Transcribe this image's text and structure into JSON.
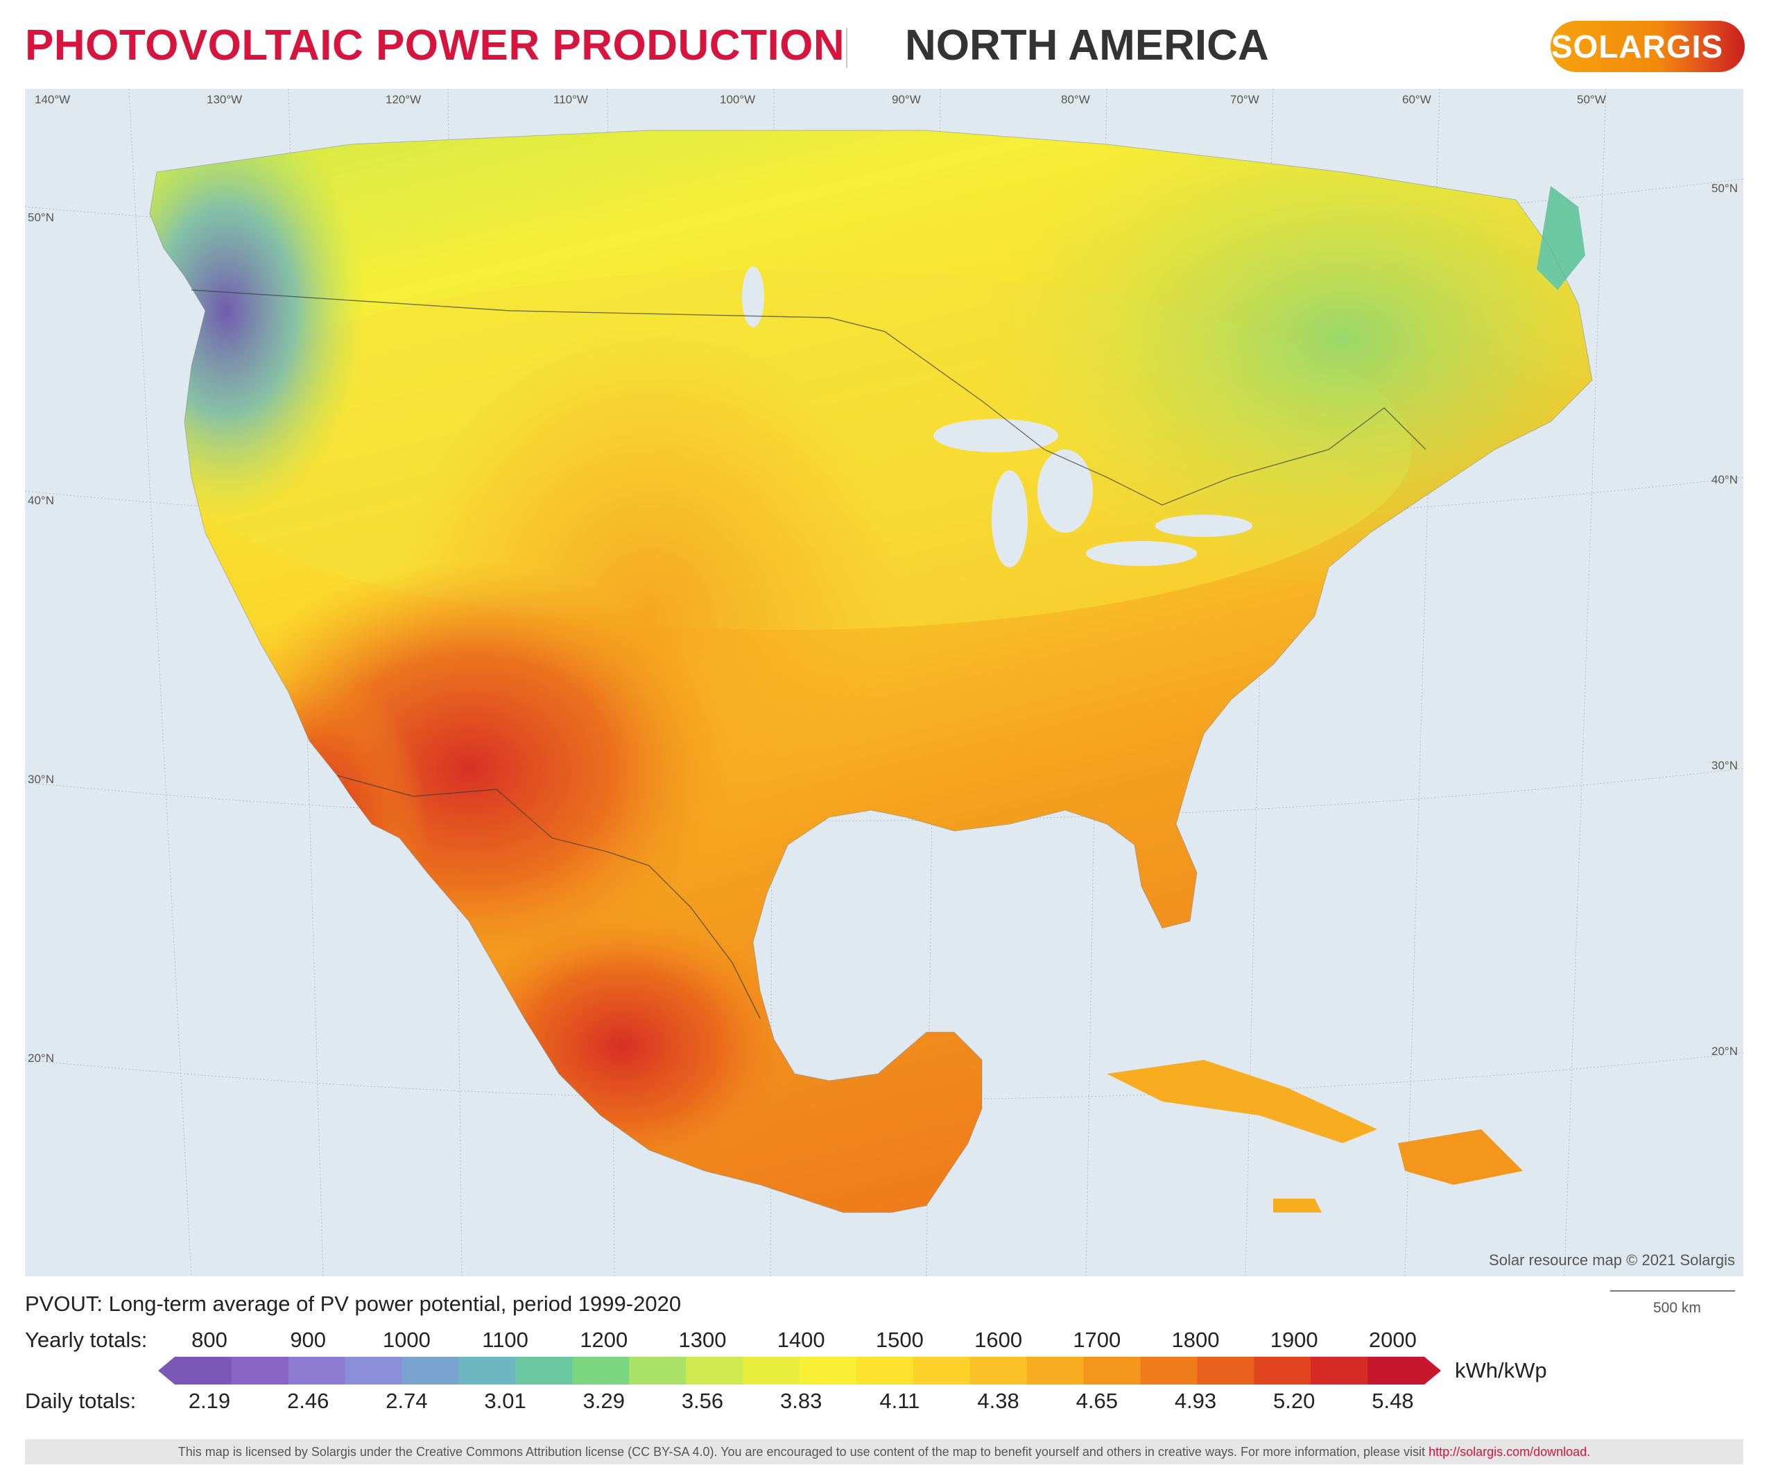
{
  "header": {
    "title": "PHOTOVOLTAIC POWER PRODUCTION",
    "region": "NORTH AMERICA",
    "logo_text": "SOLARGIS"
  },
  "map": {
    "longitude_labels": [
      "140°W",
      "130°W",
      "120°W",
      "110°W",
      "100°W",
      "90°W",
      "80°W",
      "70°W",
      "60°W",
      "50°W"
    ],
    "latitude_labels_left": [
      "50°N",
      "40°N",
      "30°N",
      "20°N"
    ],
    "latitude_labels_right": [
      "50°N",
      "40°N",
      "30°N",
      "20°N"
    ],
    "credit": "Solar resource map © 2021 Solargis",
    "scale_label": "500 km",
    "colors": {
      "water": "#dfe9ef",
      "land_low": "#7b57b8",
      "land_mid": "#f7e531",
      "land_high": "#c6172f"
    }
  },
  "legend": {
    "description": "PVOUT: Long-term average of PV power potential, period 1999-2020",
    "yearly_label": "Yearly totals:",
    "daily_label": "Daily totals:",
    "yearly_values": [
      "800",
      "900",
      "1000",
      "1100",
      "1200",
      "1300",
      "1400",
      "1500",
      "1600",
      "1700",
      "1800",
      "1900",
      "2000"
    ],
    "daily_values": [
      "2.19",
      "2.46",
      "2.74",
      "3.01",
      "3.29",
      "3.56",
      "3.83",
      "4.11",
      "4.38",
      "4.65",
      "4.93",
      "5.20",
      "5.48"
    ],
    "unit": "kWh/kWp",
    "colors": [
      "#7b57b8",
      "#8a64c4",
      "#8d7bd1",
      "#8b8fd8",
      "#7aa3d0",
      "#6db7c0",
      "#6cc8a3",
      "#7ad77f",
      "#a9e266",
      "#cfe94f",
      "#e9ee3c",
      "#f9ef36",
      "#fce22e",
      "#fdd22a",
      "#fbc126",
      "#f8ad20",
      "#f3961b",
      "#ee7c1a",
      "#e8601c",
      "#e1441f",
      "#d62a25",
      "#c6172f"
    ]
  },
  "footer": {
    "license_text": "This map is licensed by Solargis under the Creative Commons Attribution license (CC BY-SA 4.0). You are encouraged to use content of the map to benefit yourself and others in creative ways. For more information, please visit",
    "link_text": "http://solargis.com/download."
  }
}
